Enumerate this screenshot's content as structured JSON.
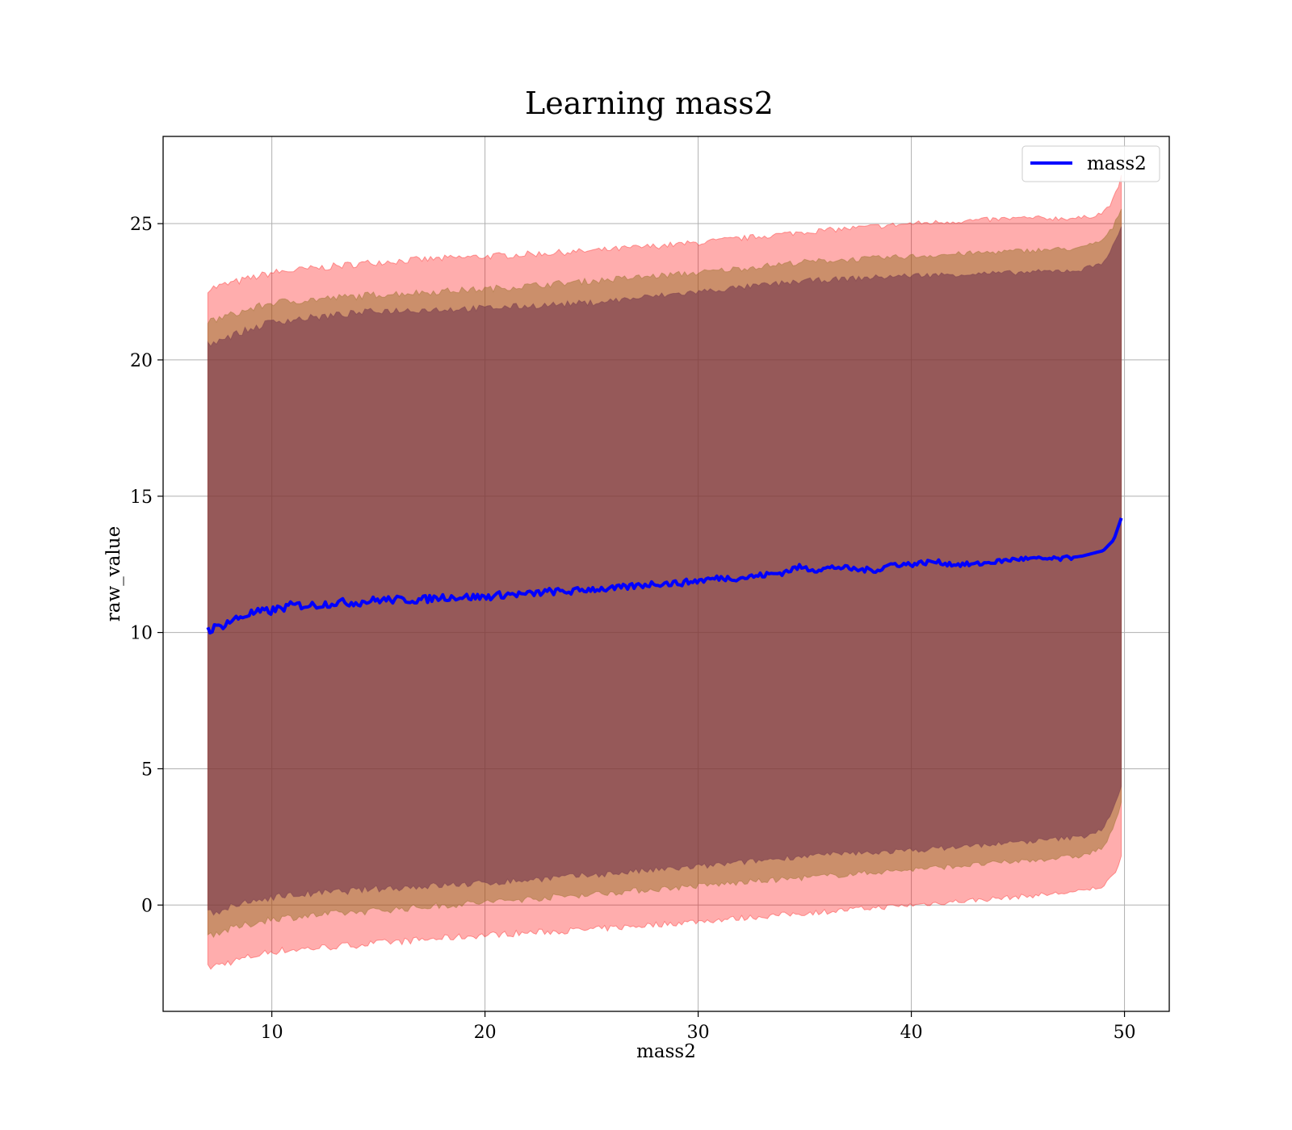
{
  "chart_data": {
    "type": "line",
    "title": "Learning mass2",
    "xlabel": "mass2",
    "ylabel": "raw_value",
    "xlim": [
      4.9,
      52.1
    ],
    "ylim": [
      -3.9,
      28.2
    ],
    "xticks": [
      10,
      20,
      30,
      40,
      50
    ],
    "yticks": [
      0,
      5,
      10,
      15,
      20,
      25
    ],
    "grid": true,
    "legend": {
      "position": "top-right",
      "entries": [
        "mass2"
      ]
    },
    "colors": {
      "line": "#0000ff",
      "band_outer": "#ff0000",
      "band_middle": "#8b6a1a",
      "band_inner": "#6b2e4a"
    },
    "series": [
      {
        "name": "mass2",
        "x": [
          7.0,
          7.5,
          8.0,
          9.0,
          10.0,
          11.0,
          12.0,
          13.0,
          14.0,
          15.0,
          16.0,
          17.0,
          18.0,
          19.0,
          20.0,
          21.0,
          22.0,
          23.0,
          24.0,
          25.0,
          26.0,
          27.0,
          28.0,
          29.0,
          30.0,
          31.0,
          32.0,
          33.0,
          34.0,
          34.7,
          35.5,
          36.5,
          37.5,
          38.5,
          39.0,
          40.0,
          41.0,
          42.0,
          43.0,
          44.0,
          45.0,
          46.0,
          47.0,
          48.0,
          48.5,
          49.0,
          49.5,
          49.85
        ],
        "y": [
          10.1,
          10.2,
          10.4,
          10.7,
          10.8,
          11.0,
          11.0,
          11.1,
          11.1,
          11.2,
          11.2,
          11.2,
          11.3,
          11.3,
          11.3,
          11.4,
          11.4,
          11.5,
          11.5,
          11.6,
          11.6,
          11.7,
          11.8,
          11.8,
          11.9,
          12.0,
          12.0,
          12.1,
          12.2,
          12.4,
          12.3,
          12.4,
          12.3,
          12.3,
          12.5,
          12.5,
          12.6,
          12.5,
          12.5,
          12.6,
          12.7,
          12.7,
          12.7,
          12.8,
          12.9,
          13.0,
          13.4,
          14.2
        ]
      }
    ],
    "bands": [
      {
        "x": [
          7.0,
          10.0,
          15.0,
          20.0,
          25.0,
          30.0,
          35.0,
          40.0,
          45.0,
          48.0,
          49.0,
          49.5,
          49.85
        ],
        "upper": [
          22.6,
          23.2,
          23.6,
          23.8,
          24.0,
          24.3,
          24.7,
          25.0,
          25.2,
          25.2,
          25.4,
          25.9,
          26.7
        ],
        "lower": [
          -2.3,
          -1.7,
          -1.4,
          -1.1,
          -0.9,
          -0.6,
          -0.3,
          0.0,
          0.3,
          0.5,
          0.7,
          1.1,
          1.8
        ]
      },
      {
        "x": [
          7.0,
          10.0,
          15.0,
          20.0,
          25.0,
          30.0,
          35.0,
          40.0,
          45.0,
          48.0,
          49.0,
          49.5,
          49.85
        ],
        "upper": [
          21.4,
          22.1,
          22.4,
          22.6,
          22.9,
          23.2,
          23.6,
          23.8,
          24.0,
          24.1,
          24.4,
          24.9,
          25.6
        ],
        "lower": [
          -1.1,
          -0.5,
          -0.2,
          0.1,
          0.4,
          0.7,
          1.0,
          1.3,
          1.6,
          1.8,
          2.1,
          2.8,
          3.8
        ]
      },
      {
        "x": [
          7.0,
          10.0,
          15.0,
          20.0,
          25.0,
          30.0,
          35.0,
          40.0,
          45.0,
          48.0,
          49.0,
          49.5,
          49.85
        ],
        "upper": [
          20.6,
          21.4,
          21.8,
          21.9,
          22.1,
          22.5,
          22.9,
          23.1,
          23.2,
          23.3,
          23.6,
          24.2,
          24.9
        ],
        "lower": [
          -0.3,
          0.3,
          0.6,
          0.8,
          1.1,
          1.4,
          1.8,
          2.0,
          2.3,
          2.5,
          2.8,
          3.5,
          4.4
        ]
      }
    ]
  }
}
